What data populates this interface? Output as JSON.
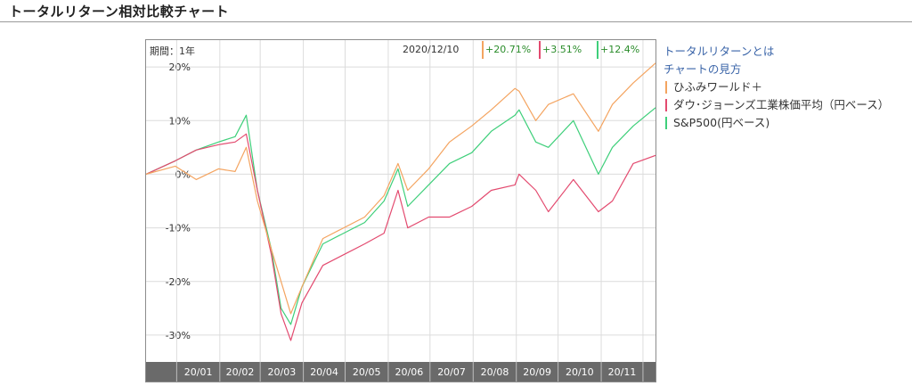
{
  "page": {
    "title": "トータルリターン相対比較チャート"
  },
  "chart_header": {
    "period": "期間：1年",
    "date": "2020/12/10",
    "readouts": [
      "+20.71%",
      "+3.51%",
      "+12.4%"
    ]
  },
  "side_links": {
    "about": "トータルリターンとは",
    "howto": "チャートの見方"
  },
  "legend": [
    "ひふみワールド＋",
    "ダウ･ジョーンズ工業株価平均（円ベース）",
    "S&P500(円ベース)"
  ],
  "colors": {
    "hifumi": "#f4a460",
    "dow": "#e34a6f",
    "sp500": "#3ecf7a",
    "link": "#3a64a8",
    "positive": "#2a8c2a"
  },
  "chart_data": {
    "type": "line",
    "ylim": [
      -35,
      25
    ],
    "yticks": [
      20,
      10,
      0,
      -10,
      -20,
      -30
    ],
    "ytick_labels": [
      "20%",
      "10%",
      "0%",
      "-10%",
      "-20%",
      "-30%"
    ],
    "x": [
      "2019/12/10",
      "2019/12/31",
      "2020/01/15",
      "2020/01/31",
      "2020/02/12",
      "2020/02/20",
      "2020/02/28",
      "2020/03/09",
      "2020/03/16",
      "2020/03/23",
      "2020/03/31",
      "2020/04/15",
      "2020/04/30",
      "2020/05/15",
      "2020/05/29",
      "2020/06/08",
      "2020/06/15",
      "2020/06/30",
      "2020/07/15",
      "2020/07/31",
      "2020/08/14",
      "2020/08/31",
      "2020/09/03",
      "2020/09/15",
      "2020/09/24",
      "2020/10/12",
      "2020/10/30",
      "2020/11/09",
      "2020/11/24",
      "2020/12/10"
    ],
    "month_labels": [
      "20/01",
      "20/02",
      "20/03",
      "20/04",
      "20/05",
      "20/06",
      "20/07",
      "20/08",
      "20/09",
      "20/10",
      "20/11"
    ],
    "series": [
      {
        "name": "ひふみワールド＋",
        "color": "#f4a460",
        "values": [
          0,
          1.5,
          -1,
          1,
          0.5,
          5,
          -5,
          -14,
          -20,
          -26,
          -21,
          -12,
          -10,
          -8,
          -4,
          2,
          -3,
          1,
          6,
          9,
          12,
          16,
          15.5,
          10,
          13,
          15,
          8,
          13,
          17,
          20.71
        ]
      },
      {
        "name": "ダウ･ジョーンズ工業株価平均（円ベース）",
        "color": "#e34a6f",
        "values": [
          0,
          2.5,
          4.5,
          5.5,
          6,
          7.5,
          -3,
          -15,
          -26,
          -31,
          -24,
          -17,
          -15,
          -13,
          -11,
          -3,
          -10,
          -8,
          -8,
          -6,
          -3,
          -2,
          0,
          -3,
          -7,
          -1,
          -7,
          -5,
          2,
          3.51
        ]
      },
      {
        "name": "S&P500(円ベース)",
        "color": "#3ecf7a",
        "values": [
          0,
          2.5,
          4.5,
          6,
          7,
          11,
          -3,
          -14,
          -25,
          -28,
          -21,
          -13,
          -11,
          -9,
          -5,
          1,
          -6,
          -2,
          2,
          4,
          8,
          11,
          12,
          6,
          5,
          10,
          0,
          5,
          9,
          12.4
        ]
      }
    ]
  }
}
